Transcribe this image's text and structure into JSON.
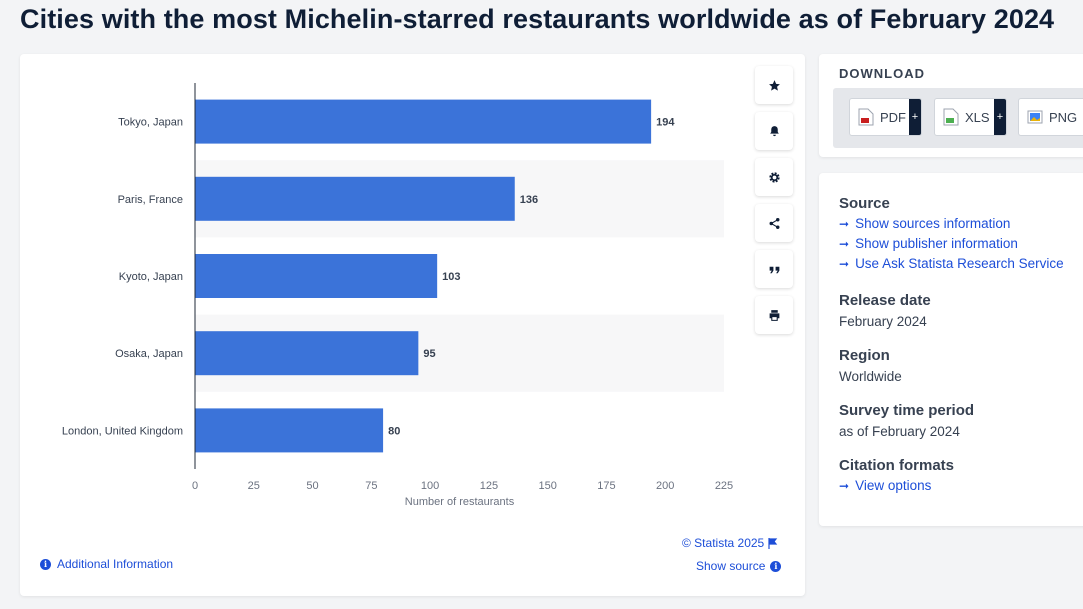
{
  "title": "Cities with the most Michelin-starred restaurants worldwide as of February 2024",
  "chart_data": {
    "type": "bar",
    "orientation": "horizontal",
    "categories": [
      "Tokyo, Japan",
      "Paris, France",
      "Kyoto, Japan",
      "Osaka, Japan",
      "London, United Kingdom"
    ],
    "values": [
      194,
      136,
      103,
      95,
      80
    ],
    "value_labels": [
      "194",
      "136",
      "103",
      "95",
      "80"
    ],
    "xlabel": "Number of restaurants",
    "ylabel": "",
    "xlim": [
      0,
      225
    ],
    "xticks": [
      0,
      25,
      50,
      75,
      100,
      125,
      150,
      175,
      200,
      225
    ],
    "xtick_labels": [
      "0",
      "25",
      "50",
      "75",
      "100",
      "125",
      "150",
      "175",
      "200",
      "225"
    ],
    "bar_color": "#3b73d9",
    "grid": false,
    "legend": "none"
  },
  "toolbar": {
    "icons": [
      "star-icon",
      "bell-icon",
      "gear-icon",
      "share-icon",
      "quote-icon",
      "print-icon"
    ]
  },
  "footer": {
    "credit": "© Statista 2025",
    "show_source": "Show source",
    "additional_info": "Additional Information"
  },
  "download": {
    "title": "DOWNLOAD",
    "buttons": [
      {
        "label": "PDF",
        "plus": "+"
      },
      {
        "label": "XLS",
        "plus": "+"
      },
      {
        "label": "PNG",
        "plus": "+"
      }
    ]
  },
  "source": {
    "heading": "Source",
    "links": [
      "Show sources information",
      "Show publisher information",
      "Use Ask Statista Research Service"
    ],
    "release_heading": "Release date",
    "release_value": "February 2024",
    "region_heading": "Region",
    "region_value": "Worldwide",
    "survey_heading": "Survey time period",
    "survey_value": "as of February 2024",
    "citation_heading": "Citation formats",
    "citation_link": "View options"
  }
}
